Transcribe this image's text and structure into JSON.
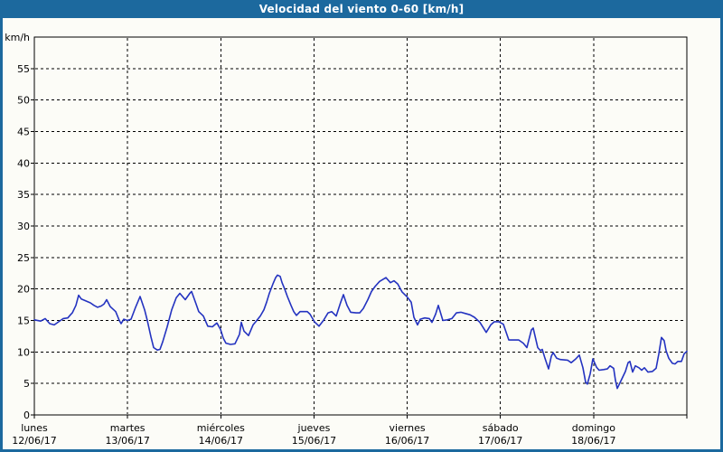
{
  "window": {
    "title": "Velocidad del viento 0-60 [km/h]"
  },
  "colors": {
    "titlebar_bg": "#1c699e",
    "frame": "#1c699e",
    "plot_bg": "#fcfcf7",
    "grid": "#000000",
    "axis": "#000000",
    "series_line": "#2433c0",
    "title_text": "#ffffff",
    "label_text": "#000000"
  },
  "chart_data": {
    "type": "line",
    "title": "Velocidad del viento 0-60 [km/h]",
    "ylabel": "km/h",
    "ylim": [
      0,
      60
    ],
    "ytick_step": 5,
    "ytick_labels": [
      "0",
      "5",
      "10",
      "15",
      "20",
      "25",
      "30",
      "35",
      "40",
      "45",
      "50",
      "55"
    ],
    "grid": "dashed",
    "legend": "none",
    "x_days": [
      {
        "name": "lunes",
        "date": "12/06/17"
      },
      {
        "name": "martes",
        "date": "13/06/17"
      },
      {
        "name": "miércoles",
        "date": "14/06/17"
      },
      {
        "name": "jueves",
        "date": "15/06/17"
      },
      {
        "name": "viernes",
        "date": "16/06/17"
      },
      {
        "name": "sábado",
        "date": "17/06/17"
      },
      {
        "name": "domingo",
        "date": "18/06/17"
      }
    ],
    "series": [
      {
        "name": "Velocidad del viento",
        "color": "#2433c0",
        "points": [
          [
            0.0,
            15.1
          ],
          [
            0.068,
            14.9
          ],
          [
            0.116,
            15.3
          ],
          [
            0.165,
            14.5
          ],
          [
            0.213,
            14.3
          ],
          [
            0.262,
            14.8
          ],
          [
            0.31,
            15.3
          ],
          [
            0.359,
            15.4
          ],
          [
            0.388,
            15.9
          ],
          [
            0.407,
            16.2
          ],
          [
            0.446,
            17.4
          ],
          [
            0.475,
            19.0
          ],
          [
            0.504,
            18.4
          ],
          [
            0.553,
            18.1
          ],
          [
            0.601,
            17.8
          ],
          [
            0.64,
            17.4
          ],
          [
            0.679,
            17.1
          ],
          [
            0.717,
            17.3
          ],
          [
            0.747,
            17.6
          ],
          [
            0.776,
            18.3
          ],
          [
            0.814,
            17.2
          ],
          [
            0.873,
            16.4
          ],
          [
            0.911,
            15.0
          ],
          [
            0.931,
            14.5
          ],
          [
            0.96,
            15.2
          ],
          [
            0.999,
            15.0
          ],
          [
            1.037,
            15.2
          ],
          [
            1.086,
            17.1
          ],
          [
            1.134,
            18.8
          ],
          [
            1.183,
            16.7
          ],
          [
            1.212,
            15.0
          ],
          [
            1.251,
            12.4
          ],
          [
            1.28,
            10.7
          ],
          [
            1.319,
            10.3
          ],
          [
            1.348,
            10.4
          ],
          [
            1.377,
            11.6
          ],
          [
            1.425,
            14.0
          ],
          [
            1.474,
            16.7
          ],
          [
            1.522,
            18.6
          ],
          [
            1.561,
            19.3
          ],
          [
            1.619,
            18.3
          ],
          [
            1.668,
            19.3
          ],
          [
            1.687,
            19.6
          ],
          [
            1.735,
            17.6
          ],
          [
            1.764,
            16.4
          ],
          [
            1.813,
            15.7
          ],
          [
            1.861,
            14.1
          ],
          [
            1.91,
            14.0
          ],
          [
            1.958,
            14.6
          ],
          [
            1.997,
            13.6
          ],
          [
            2.026,
            12.2
          ],
          [
            2.055,
            11.4
          ],
          [
            2.104,
            11.2
          ],
          [
            2.152,
            11.3
          ],
          [
            2.201,
            12.8
          ],
          [
            2.22,
            14.7
          ],
          [
            2.249,
            13.3
          ],
          [
            2.298,
            12.6
          ],
          [
            2.346,
            14.3
          ],
          [
            2.375,
            14.8
          ],
          [
            2.424,
            15.7
          ],
          [
            2.463,
            16.7
          ],
          [
            2.492,
            17.9
          ],
          [
            2.521,
            19.3
          ],
          [
            2.56,
            20.8
          ],
          [
            2.589,
            21.8
          ],
          [
            2.608,
            22.2
          ],
          [
            2.637,
            22.0
          ],
          [
            2.657,
            21.0
          ],
          [
            2.686,
            20.0
          ],
          [
            2.715,
            18.8
          ],
          [
            2.753,
            17.4
          ],
          [
            2.783,
            16.4
          ],
          [
            2.812,
            15.8
          ],
          [
            2.85,
            16.4
          ],
          [
            2.899,
            16.4
          ],
          [
            2.928,
            16.4
          ],
          [
            2.957,
            16.0
          ],
          [
            3.005,
            14.8
          ],
          [
            3.054,
            14.1
          ],
          [
            3.102,
            15.0
          ],
          [
            3.151,
            16.2
          ],
          [
            3.19,
            16.4
          ],
          [
            3.238,
            15.7
          ],
          [
            3.287,
            17.9
          ],
          [
            3.316,
            19.1
          ],
          [
            3.355,
            17.4
          ],
          [
            3.393,
            16.3
          ],
          [
            3.452,
            16.2
          ],
          [
            3.49,
            16.2
          ],
          [
            3.529,
            16.9
          ],
          [
            3.578,
            18.3
          ],
          [
            3.616,
            19.6
          ],
          [
            3.655,
            20.4
          ],
          [
            3.704,
            21.2
          ],
          [
            3.772,
            21.8
          ],
          [
            3.82,
            21.0
          ],
          [
            3.859,
            21.3
          ],
          [
            3.898,
            20.8
          ],
          [
            3.946,
            19.5
          ],
          [
            3.995,
            18.8
          ],
          [
            4.043,
            17.9
          ],
          [
            4.072,
            15.5
          ],
          [
            4.111,
            14.3
          ],
          [
            4.14,
            15.2
          ],
          [
            4.188,
            15.4
          ],
          [
            4.237,
            15.3
          ],
          [
            4.266,
            14.7
          ],
          [
            4.305,
            16.0
          ],
          [
            4.334,
            17.4
          ],
          [
            4.382,
            15.0
          ],
          [
            4.431,
            15.1
          ],
          [
            4.479,
            15.3
          ],
          [
            4.528,
            16.2
          ],
          [
            4.576,
            16.3
          ],
          [
            4.625,
            16.1
          ],
          [
            4.673,
            15.9
          ],
          [
            4.722,
            15.5
          ],
          [
            4.78,
            14.7
          ],
          [
            4.848,
            13.1
          ],
          [
            4.896,
            14.3
          ],
          [
            4.935,
            14.8
          ],
          [
            4.983,
            14.8
          ],
          [
            5.032,
            14.4
          ],
          [
            5.09,
            11.9
          ],
          [
            5.139,
            11.9
          ],
          [
            5.197,
            11.9
          ],
          [
            5.245,
            11.4
          ],
          [
            5.284,
            10.7
          ],
          [
            5.332,
            13.5
          ],
          [
            5.352,
            13.8
          ],
          [
            5.4,
            10.7
          ],
          [
            5.429,
            10.2
          ],
          [
            5.449,
            10.4
          ],
          [
            5.478,
            9.0
          ],
          [
            5.517,
            7.3
          ],
          [
            5.546,
            9.3
          ],
          [
            5.565,
            9.9
          ],
          [
            5.604,
            9.0
          ],
          [
            5.643,
            8.8
          ],
          [
            5.72,
            8.7
          ],
          [
            5.759,
            8.3
          ],
          [
            5.808,
            8.9
          ],
          [
            5.846,
            9.5
          ],
          [
            5.885,
            7.5
          ],
          [
            5.914,
            5.2
          ],
          [
            5.933,
            4.9
          ],
          [
            5.963,
            6.5
          ],
          [
            5.992,
            8.9
          ],
          [
            6.03,
            7.6
          ],
          [
            6.059,
            7.1
          ],
          [
            6.108,
            7.2
          ],
          [
            6.147,
            7.3
          ],
          [
            6.176,
            7.8
          ],
          [
            6.215,
            7.4
          ],
          [
            6.234,
            5.5
          ],
          [
            6.253,
            4.2
          ],
          [
            6.292,
            5.4
          ],
          [
            6.341,
            6.9
          ],
          [
            6.37,
            8.3
          ],
          [
            6.389,
            8.5
          ],
          [
            6.418,
            6.8
          ],
          [
            6.447,
            7.8
          ],
          [
            6.486,
            7.5
          ],
          [
            6.515,
            7.1
          ],
          [
            6.544,
            7.5
          ],
          [
            6.583,
            6.8
          ],
          [
            6.631,
            6.9
          ],
          [
            6.67,
            7.4
          ],
          [
            6.699,
            9.7
          ],
          [
            6.728,
            12.3
          ],
          [
            6.757,
            11.8
          ],
          [
            6.777,
            10.2
          ],
          [
            6.806,
            9.0
          ],
          [
            6.845,
            8.2
          ],
          [
            6.874,
            8.1
          ],
          [
            6.903,
            8.5
          ],
          [
            6.942,
            8.5
          ],
          [
            6.971,
            9.7
          ],
          [
            7.0,
            10.1
          ]
        ]
      }
    ]
  }
}
